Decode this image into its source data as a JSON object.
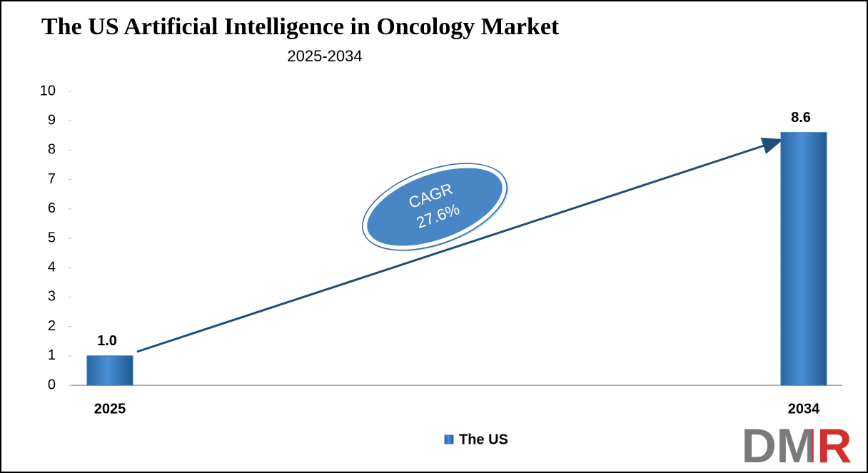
{
  "chart_data": {
    "type": "bar",
    "title": "The US Artificial Intelligence in Oncology Market",
    "subtitle": "2025-2034",
    "categories": [
      "2025",
      "2034"
    ],
    "series": [
      {
        "name": "The US",
        "color": "#2e75b6",
        "values": [
          1.0,
          8.6
        ],
        "value_labels": [
          "1.0",
          "8.6"
        ]
      }
    ],
    "ylim": [
      0,
      10
    ],
    "yticks": [
      0,
      1,
      2,
      3,
      4,
      5,
      6,
      7,
      8,
      9,
      10
    ],
    "grid": false,
    "legend": "bottom",
    "annotation": {
      "label": "CAGR",
      "value": "27.6%"
    },
    "logo": "DMR"
  }
}
